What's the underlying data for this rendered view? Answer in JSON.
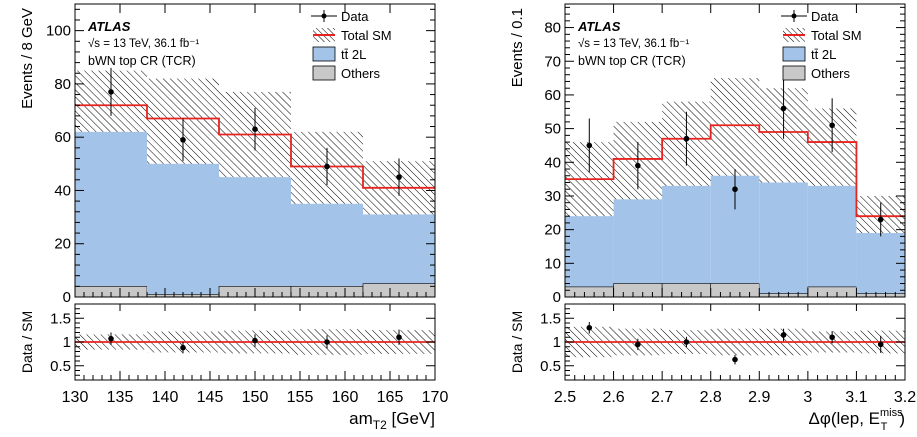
{
  "colors": {
    "ttbar": "#a3c4e8",
    "others": "#c8c8c8",
    "total_sm": "#e8231f",
    "data": "#000000"
  },
  "chart_data": [
    {
      "type": "histogram",
      "experiment": "ATLAS",
      "energy_label": "√s = 13 TeV, 36.1 fb⁻¹",
      "region_label": "bWN top CR (TCR)",
      "ylabel": "Events / 8 GeV",
      "ratio_ylabel": "Data / SM",
      "xlabel": "am",
      "xlabel_sub": "T2",
      "xlabel_unit": " [GeV]",
      "xlim": [
        130,
        170
      ],
      "ylim": [
        0,
        110
      ],
      "yticks": [
        0,
        20,
        40,
        60,
        80,
        100
      ],
      "xticks": [
        130,
        135,
        140,
        145,
        150,
        155,
        160,
        165,
        170
      ],
      "ratio_ylim": [
        0.2,
        1.8
      ],
      "ratio_yticks": [
        0.5,
        1,
        1.5
      ],
      "bin_edges": [
        130,
        138,
        146,
        154,
        162,
        170
      ],
      "ttbar": [
        62,
        50,
        45,
        35,
        31
      ],
      "others": [
        4,
        1,
        4,
        4,
        5
      ],
      "total_sm": [
        72,
        67,
        61,
        49,
        41
      ],
      "band_low": [
        62,
        50,
        45,
        35,
        31
      ],
      "band_high": [
        85,
        82,
        77,
        62,
        51
      ],
      "data_x": [
        134,
        142,
        150,
        158,
        166
      ],
      "data_y": [
        77,
        59,
        63,
        49,
        45
      ],
      "data_err": [
        9,
        8,
        8,
        7,
        7
      ],
      "ratio_y": [
        1.07,
        0.88,
        1.03,
        1.0,
        1.1
      ],
      "ratio_err": [
        0.13,
        0.12,
        0.13,
        0.14,
        0.16
      ],
      "ratio_band": [
        0.16,
        0.22,
        0.24,
        0.27,
        0.25
      ],
      "legend": [
        "Data",
        "Total SM",
        "tt̄ 2L",
        "Others"
      ]
    },
    {
      "type": "histogram",
      "experiment": "ATLAS",
      "energy_label": "√s = 13 TeV, 36.1 fb⁻¹",
      "region_label": "bWN top CR (TCR)",
      "ylabel": "Events / 0.1",
      "ratio_ylabel": "Data / SM",
      "xlabel": "Δφ(lep, E",
      "xlabel_sub": "T",
      "xlabel_sup": "miss",
      "xlabel_unit": ")",
      "xlim": [
        2.5,
        3.2
      ],
      "ylim": [
        0,
        87
      ],
      "yticks": [
        0,
        10,
        20,
        30,
        40,
        50,
        60,
        70,
        80
      ],
      "xticks": [
        2.5,
        2.6,
        2.7,
        2.8,
        2.9,
        3.0,
        3.1,
        3.2
      ],
      "ratio_ylim": [
        0.2,
        1.8
      ],
      "ratio_yticks": [
        0.5,
        1,
        1.5
      ],
      "bin_edges": [
        2.5,
        2.6,
        2.7,
        2.8,
        2.9,
        3.0,
        3.1,
        3.2
      ],
      "ttbar": [
        24,
        29,
        33,
        36,
        34,
        33,
        19
      ],
      "others": [
        3,
        4,
        4,
        4,
        1,
        3,
        1
      ],
      "total_sm": [
        35,
        41,
        47,
        51,
        49,
        46,
        24
      ],
      "band_low": [
        24,
        29,
        33,
        36,
        34,
        33,
        19
      ],
      "band_high": [
        46,
        52,
        58,
        65,
        62,
        56,
        30
      ],
      "data_x": [
        2.55,
        2.65,
        2.75,
        2.85,
        2.95,
        3.05,
        3.15
      ],
      "data_y": [
        45,
        39,
        47,
        32,
        56,
        51,
        23
      ],
      "data_err": [
        8,
        7,
        8,
        6,
        9,
        8,
        5
      ],
      "ratio_y": [
        1.3,
        0.95,
        1.0,
        0.63,
        1.15,
        1.1,
        0.95
      ],
      "ratio_err": [
        0.12,
        0.12,
        0.11,
        0.1,
        0.13,
        0.13,
        0.18
      ],
      "ratio_band": [
        0.32,
        0.28,
        0.25,
        0.28,
        0.28,
        0.22,
        0.24
      ],
      "legend": [
        "Data",
        "Total SM",
        "tt̄ 2L",
        "Others"
      ]
    }
  ]
}
